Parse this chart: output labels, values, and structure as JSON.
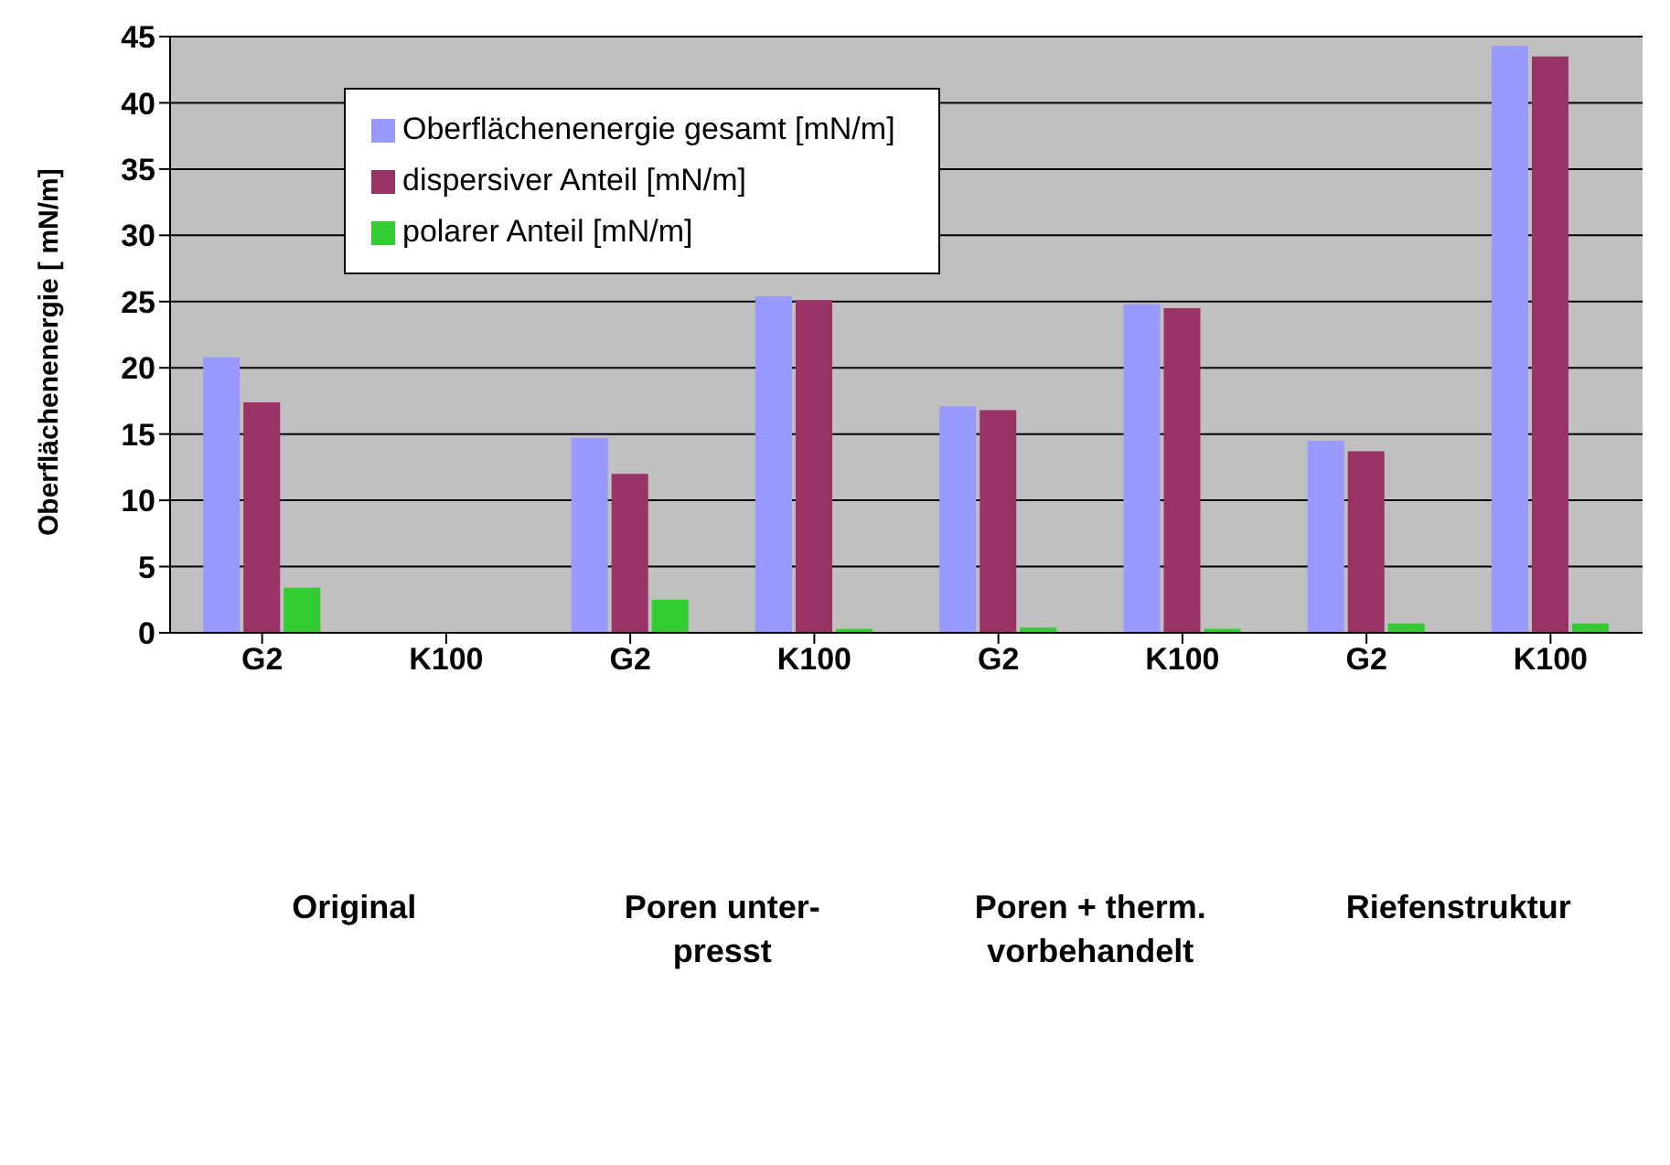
{
  "chart_data": {
    "type": "bar",
    "ylabel": "Oberflächenenergie [ mN/m]",
    "categories": [
      "G2",
      "K100",
      "G2",
      "K100",
      "G2",
      "K100",
      "G2",
      "K100"
    ],
    "series": [
      {
        "name": "Oberflächenenergie gesamt [mN/m]",
        "color": "#9999ff",
        "values": [
          20.8,
          null,
          14.7,
          25.4,
          17.1,
          24.8,
          14.5,
          44.3
        ]
      },
      {
        "name": "dispersiver Anteil [mN/m]",
        "color": "#993366",
        "values": [
          17.4,
          null,
          12.0,
          25.1,
          16.8,
          24.5,
          13.7,
          43.5
        ]
      },
      {
        "name": "polarer Anteil [mN/m]",
        "color": "#33cc33",
        "values": [
          3.4,
          null,
          2.5,
          0.3,
          0.4,
          0.3,
          0.7,
          0.7
        ]
      }
    ],
    "annotations": [
      "Original",
      "Poren unter- presst",
      "Poren + therm. vorbehandelt",
      "Riefenstruktur"
    ],
    "ylim": [
      0,
      45
    ],
    "yticks": [
      0,
      5,
      10,
      15,
      20,
      25,
      30,
      35,
      40,
      45
    ],
    "grid": "y",
    "legend": "top"
  }
}
